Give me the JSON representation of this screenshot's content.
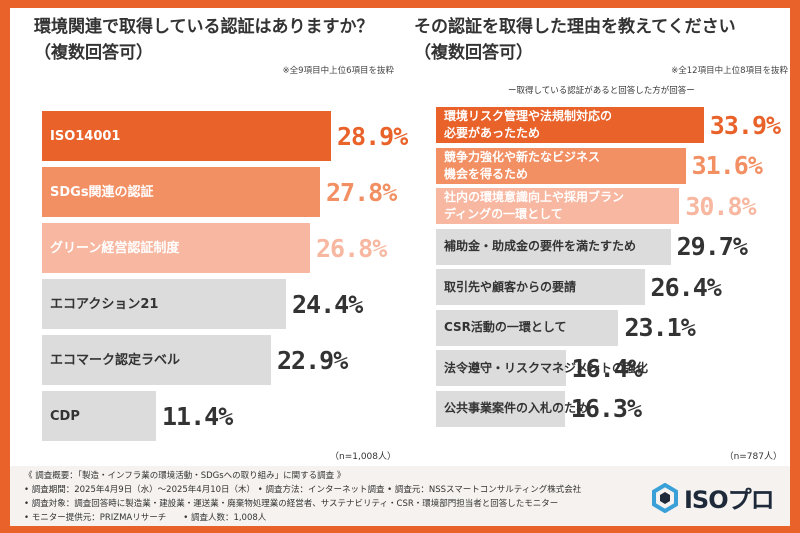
{
  "chart_data": [
    {
      "type": "bar",
      "title": "環境関連で取得している認証はありますか？",
      "subtitle": "（複数回答可）",
      "note": "※全9項目中上位6項目を抜粋",
      "sample": "（n=1,008人）",
      "categories": [
        "ISO14001",
        "SDGs関連の認証",
        "グリーン経営認証制度",
        "エコアクション21",
        "エコマーク認定ラベル",
        "CDP"
      ],
      "values": [
        28.9,
        27.8,
        26.8,
        24.4,
        22.9,
        11.4
      ],
      "value_labels": [
        "28.9%",
        "27.8%",
        "26.8%",
        "24.4%",
        "22.9%",
        "11.4%"
      ],
      "colors": [
        "#e8622a",
        "#f28f63",
        "#f7b7a0",
        "#dcdcdc",
        "#dcdcdc",
        "#dcdcdc"
      ],
      "value_colors": [
        "#e8622a",
        "#f28f63",
        "#f7b7a0",
        "#333333",
        "#333333",
        "#333333"
      ],
      "label_colors": [
        "#ffffff",
        "#ffffff",
        "#ffffff",
        "#333333",
        "#333333",
        "#333333"
      ]
    },
    {
      "type": "bar",
      "title": "その認証を取得した理由を教えてください",
      "subtitle": "（複数回答可）",
      "note": "※全12項目中上位8項目を抜粋",
      "condition": "ー取得している認証があると回答した方が回答ー",
      "sample": "（n=787人）",
      "categories": [
        [
          "環境リスク管理や法規制対応の",
          "必要があったため"
        ],
        [
          "競争力強化や新たなビジネス",
          "機会を得るため"
        ],
        [
          "社内の環境意識向上や採用ブラン",
          "ディングの一環として"
        ],
        [
          "補助金・助成金の要件を満たすため"
        ],
        [
          "取引先や顧客からの要請"
        ],
        [
          "CSR活動の一環として"
        ],
        [
          "法令遵守・リスクマネジメントの強化"
        ],
        [
          "公共事業案件の入札のため"
        ]
      ],
      "values": [
        33.9,
        31.6,
        30.8,
        29.7,
        26.4,
        23.1,
        16.4,
        16.3
      ],
      "value_labels": [
        "33.9%",
        "31.6%",
        "30.8%",
        "29.7%",
        "26.4%",
        "23.1%",
        "16.4%",
        "16.3%"
      ],
      "colors": [
        "#e8622a",
        "#f28f63",
        "#f7b7a0",
        "#dcdcdc",
        "#dcdcdc",
        "#dcdcdc",
        "#dcdcdc",
        "#dcdcdc"
      ],
      "value_colors": [
        "#e8622a",
        "#f28f63",
        "#f7b7a0",
        "#333333",
        "#333333",
        "#333333",
        "#333333",
        "#333333"
      ],
      "label_colors": [
        "#ffffff",
        "#ffffff",
        "#ffffff",
        "#333333",
        "#333333",
        "#333333",
        "#333333",
        "#333333"
      ]
    }
  ],
  "footer": {
    "lines": [
      "《 調査概要：「製造・インフラ業の環境活動・SDGsへの取り組み」に関する調査 》",
      "• 調査期間：2025年4月9日（水）〜2025年4月10日（木） • 調査方法：インターネット調査 • 調査元：NSSスマートコンサルティング株式会社",
      "• 調査対象：調査回答時に製造業・建設業・運送業・廃棄物処理業の経営者、サステナビリティ・CSR・環境部門担当者と回答したモニター",
      "• モニター提供元：PRIZMAリサーチ　　• 調査人数：1,008人"
    ],
    "logo_text": "ISOプロ",
    "logo_color": "#1e2a3a",
    "logo_accent": "#3aa0d8"
  }
}
